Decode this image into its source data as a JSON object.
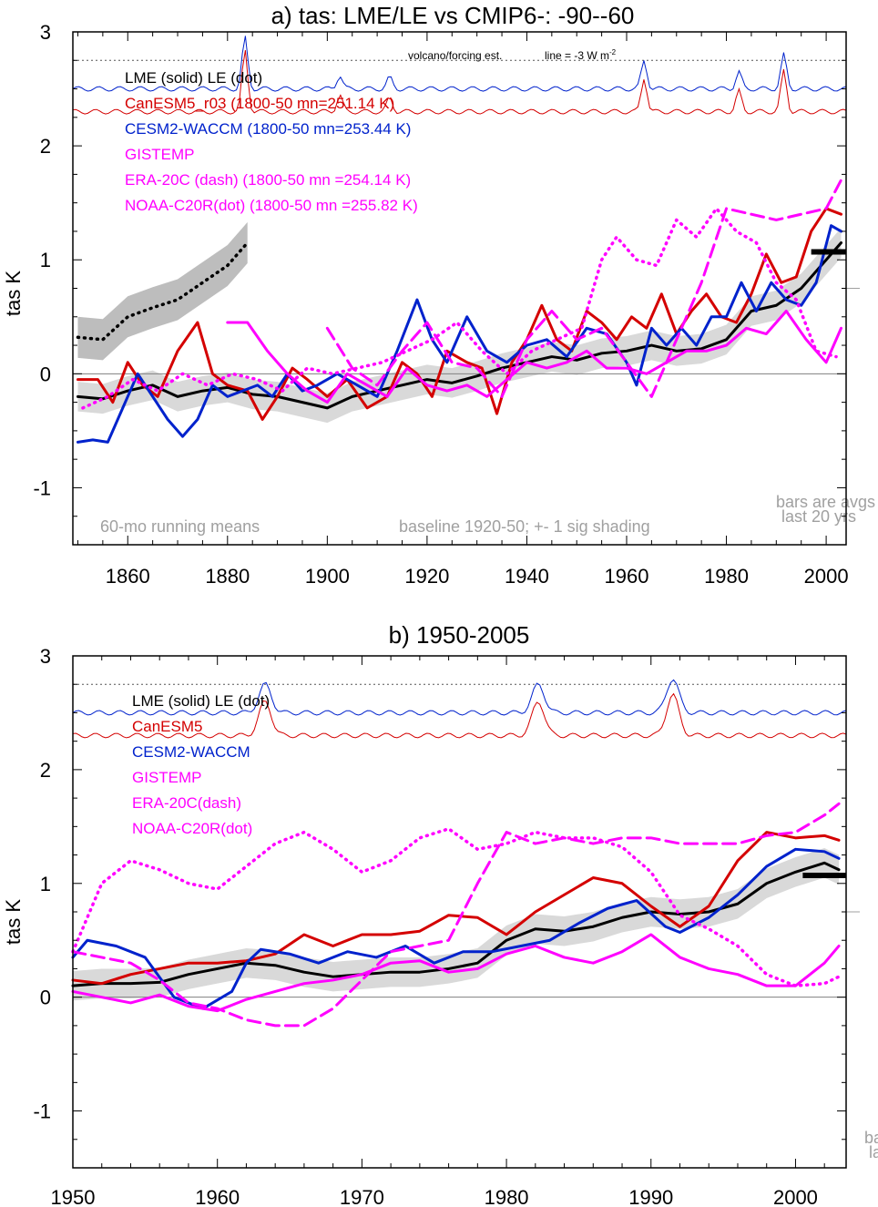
{
  "colors": {
    "lme": "#000000",
    "canesm": "#d40000",
    "cesm": "#0022cc",
    "obs": "#ff00ff",
    "shade": "#d9d9d9",
    "shade_dark": "#bdbdbd",
    "gray_text": "#a0a0a0",
    "ref_line": "#808080"
  },
  "chart_data": [
    {
      "type": "line",
      "title": "a) tas: LME/LE vs CMIP6-: -90--60",
      "ylabel": "tas K",
      "xlim": [
        1849,
        2004
      ],
      "ylim": [
        -1.5,
        3.0
      ],
      "xticks": [
        1860,
        1880,
        1900,
        1920,
        1940,
        1960,
        1980,
        2000
      ],
      "yticks": [
        -1,
        0,
        1,
        2,
        3
      ],
      "legend": [
        {
          "text": "LME (solid)    LE (dot)",
          "color": "#000000"
        },
        {
          "text": "CanESM5_r03 (1800-50 mn=251.14 K)",
          "color": "#d40000"
        },
        {
          "text": "CESM2-WACCM (1800-50 mn=253.44 K)",
          "color": "#0022cc"
        },
        {
          "text": "GISTEMP",
          "color": "#ff00ff"
        },
        {
          "text": "ERA-20C (dash) (1800-50 mn =254.14 K)",
          "color": "#ff00ff"
        },
        {
          "text": "NOAA-C20R(dot) (1800-50 mn =255.82 K)",
          "color": "#ff00ff"
        }
      ],
      "volcano_label": "volcano/forcing est.",
      "line_label": "line = -3 W m",
      "line_label_sup": "-2",
      "note_left": "60-mo running means",
      "note_center": "baseline 1920-50; +- 1 sig shading",
      "note_right_1": "bars are avgs",
      "note_right_2": "last 20 yrs",
      "ref_level": 2.75,
      "side_tick": 0.75,
      "series": [
        {
          "name": "LME",
          "style": "solid",
          "color": "#000000",
          "x": [
            1850,
            1855,
            1860,
            1865,
            1870,
            1875,
            1880,
            1885,
            1890,
            1895,
            1900,
            1905,
            1910,
            1915,
            1920,
            1925,
            1930,
            1935,
            1940,
            1945,
            1950,
            1955,
            1960,
            1965,
            1970,
            1975,
            1980,
            1985,
            1990,
            1995,
            2000,
            2003
          ],
          "y": [
            -0.2,
            -0.22,
            -0.15,
            -0.1,
            -0.2,
            -0.15,
            -0.12,
            -0.18,
            -0.2,
            -0.25,
            -0.3,
            -0.2,
            -0.15,
            -0.1,
            -0.05,
            -0.08,
            -0.02,
            0.05,
            0.1,
            0.15,
            0.12,
            0.18,
            0.2,
            0.25,
            0.2,
            0.22,
            0.3,
            0.55,
            0.6,
            0.75,
            1.0,
            1.15
          ]
        },
        {
          "name": "LE",
          "style": "dot",
          "color": "#000000",
          "x": [
            1850,
            1855,
            1860,
            1865,
            1870,
            1875,
            1880,
            1884
          ],
          "y": [
            0.32,
            0.3,
            0.5,
            0.58,
            0.65,
            0.8,
            0.95,
            1.15
          ]
        },
        {
          "name": "CanESM5_r03",
          "style": "solid",
          "color": "#d40000",
          "x": [
            1850,
            1854,
            1857,
            1860,
            1863,
            1866,
            1870,
            1874,
            1877,
            1880,
            1884,
            1887,
            1890,
            1893,
            1896,
            1900,
            1904,
            1908,
            1912,
            1915,
            1918,
            1921,
            1924,
            1928,
            1931,
            1934,
            1937,
            1940,
            1943,
            1946,
            1949,
            1952,
            1955,
            1958,
            1961,
            1964,
            1967,
            1970,
            1973,
            1976,
            1979,
            1982,
            1985,
            1988,
            1991,
            1994,
            1997,
            2000,
            2003
          ],
          "y": [
            -0.05,
            -0.05,
            -0.25,
            0.1,
            -0.1,
            -0.2,
            0.2,
            0.45,
            0.0,
            -0.1,
            -0.15,
            -0.4,
            -0.2,
            0.05,
            -0.05,
            -0.2,
            -0.05,
            -0.3,
            -0.2,
            0.1,
            0.0,
            -0.2,
            0.2,
            0.1,
            0.05,
            -0.35,
            0.1,
            0.3,
            0.6,
            0.3,
            0.2,
            0.55,
            0.45,
            0.3,
            0.5,
            0.4,
            0.7,
            0.35,
            0.55,
            0.7,
            0.5,
            0.45,
            0.7,
            1.05,
            0.8,
            0.85,
            1.25,
            1.45,
            1.4
          ]
        },
        {
          "name": "CESM2-WACCM",
          "style": "solid",
          "color": "#0022cc",
          "x": [
            1850,
            1853,
            1856,
            1859,
            1862,
            1865,
            1868,
            1871,
            1874,
            1877,
            1880,
            1883,
            1886,
            1889,
            1892,
            1895,
            1898,
            1902,
            1906,
            1910,
            1914,
            1918,
            1921,
            1924,
            1928,
            1932,
            1936,
            1940,
            1944,
            1948,
            1952,
            1956,
            1960,
            1962,
            1965,
            1968,
            1971,
            1974,
            1977,
            1980,
            1983,
            1986,
            1989,
            1992,
            1995,
            1998,
            2001,
            2003
          ],
          "y": [
            -0.6,
            -0.58,
            -0.6,
            -0.3,
            0.0,
            -0.2,
            -0.4,
            -0.55,
            -0.4,
            -0.1,
            -0.2,
            -0.15,
            -0.1,
            -0.2,
            0.0,
            -0.15,
            -0.1,
            0.0,
            -0.1,
            -0.2,
            0.2,
            0.65,
            0.3,
            0.1,
            0.5,
            0.2,
            0.1,
            0.25,
            0.3,
            0.15,
            0.4,
            0.35,
            0.1,
            -0.1,
            0.4,
            0.25,
            0.4,
            0.25,
            0.5,
            0.5,
            0.8,
            0.55,
            0.8,
            0.65,
            0.6,
            0.8,
            1.3,
            1.25
          ]
        },
        {
          "name": "GISTEMP",
          "style": "solid",
          "color": "#ff00ff",
          "x": [
            1880,
            1884,
            1888,
            1892,
            1896,
            1900,
            1904,
            1908,
            1912,
            1916,
            1920,
            1924,
            1928,
            1932,
            1936,
            1940,
            1944,
            1948,
            1952,
            1956,
            1960,
            1964,
            1968,
            1972,
            1976,
            1980,
            1984,
            1988,
            1992,
            1996,
            2000,
            2003
          ],
          "y": [
            0.45,
            0.45,
            0.2,
            0.0,
            -0.15,
            -0.25,
            0.0,
            -0.1,
            -0.2,
            0.05,
            -0.1,
            -0.15,
            -0.1,
            -0.2,
            -0.05,
            0.1,
            0.05,
            0.1,
            0.2,
            0.05,
            0.05,
            0.0,
            0.1,
            0.2,
            0.2,
            0.25,
            0.4,
            0.35,
            0.55,
            0.3,
            0.1,
            0.4
          ]
        },
        {
          "name": "ERA-20C",
          "style": "dash",
          "color": "#ff00ff",
          "x": [
            1900,
            1905,
            1910,
            1915,
            1920,
            1925,
            1930,
            1935,
            1940,
            1945,
            1950,
            1955,
            1960,
            1965,
            1970,
            1975,
            1980,
            1985,
            1990,
            1995,
            2000,
            2003
          ],
          "y": [
            0.4,
            0.05,
            -0.1,
            0.2,
            0.45,
            0.1,
            0.05,
            -0.2,
            0.3,
            0.55,
            0.3,
            0.4,
            0.1,
            -0.2,
            0.3,
            0.8,
            1.45,
            1.4,
            1.35,
            1.4,
            1.45,
            1.7
          ]
        },
        {
          "name": "NOAA-C20R",
          "style": "dot",
          "color": "#ff00ff",
          "x": [
            1851,
            1856,
            1861,
            1866,
            1871,
            1876,
            1881,
            1886,
            1891,
            1896,
            1901,
            1906,
            1911,
            1916,
            1921,
            1926,
            1931,
            1936,
            1941,
            1946,
            1951,
            1955,
            1958,
            1962,
            1966,
            1970,
            1974,
            1978,
            1982,
            1986,
            1990,
            1994,
            1998,
            2002
          ],
          "y": [
            -0.3,
            -0.2,
            -0.05,
            -0.15,
            0.0,
            -0.1,
            0.0,
            -0.05,
            -0.15,
            0.05,
            0.0,
            0.05,
            0.1,
            0.2,
            0.3,
            0.45,
            0.2,
            0.0,
            0.2,
            0.3,
            0.4,
            1.0,
            1.2,
            1.0,
            0.95,
            1.35,
            1.2,
            1.45,
            1.25,
            1.15,
            0.8,
            0.65,
            0.2,
            0.15
          ]
        }
      ],
      "bars": [
        {
          "color": "#000000",
          "value": 1.07,
          "x": [
            1997,
            2004
          ]
        }
      ]
    },
    {
      "type": "line",
      "title": "b) 1950-2005",
      "ylabel": "tas K",
      "xlim": [
        1950,
        2003.5
      ],
      "ylim": [
        -1.5,
        3.0
      ],
      "xticks": [
        1950,
        1960,
        1970,
        1980,
        1990,
        2000
      ],
      "yticks": [
        -1,
        0,
        1,
        2,
        3
      ],
      "legend": [
        {
          "text": "LME (solid)      LE (dot)",
          "color": "#000000"
        },
        {
          "text": "CanESM5",
          "color": "#d40000"
        },
        {
          "text": "CESM2-WACCM",
          "color": "#0022cc"
        },
        {
          "text": "GISTEMP",
          "color": "#ff00ff"
        },
        {
          "text": "ERA-20C(dash)",
          "color": "#ff00ff"
        },
        {
          "text": "NOAA-C20R(dot)",
          "color": "#ff00ff"
        }
      ],
      "note_right_1": "ba",
      "note_right_2": "la",
      "ref_level": 2.75,
      "side_tick": 0.75,
      "series": [
        {
          "name": "LME",
          "style": "solid",
          "color": "#000000",
          "x": [
            1950,
            1952,
            1954,
            1956,
            1958,
            1960,
            1962,
            1964,
            1966,
            1968,
            1970,
            1972,
            1974,
            1976,
            1978,
            1980,
            1982,
            1984,
            1986,
            1988,
            1990,
            1992,
            1994,
            1996,
            1998,
            2000,
            2002,
            2003
          ],
          "y": [
            0.1,
            0.12,
            0.12,
            0.13,
            0.2,
            0.25,
            0.3,
            0.28,
            0.22,
            0.18,
            0.2,
            0.22,
            0.22,
            0.25,
            0.3,
            0.5,
            0.6,
            0.58,
            0.62,
            0.7,
            0.75,
            0.73,
            0.75,
            0.82,
            1.0,
            1.1,
            1.18,
            1.12
          ]
        },
        {
          "name": "CanESM5",
          "style": "solid",
          "color": "#d40000",
          "x": [
            1950,
            1952,
            1954,
            1956,
            1958,
            1960,
            1962,
            1964,
            1966,
            1968,
            1970,
            1972,
            1974,
            1976,
            1978,
            1980,
            1982,
            1984,
            1986,
            1988,
            1990,
            1992,
            1994,
            1996,
            1998,
            2000,
            2002,
            2003
          ],
          "y": [
            0.15,
            0.12,
            0.2,
            0.25,
            0.3,
            0.3,
            0.32,
            0.38,
            0.55,
            0.45,
            0.55,
            0.55,
            0.58,
            0.72,
            0.7,
            0.55,
            0.75,
            0.9,
            1.05,
            1.0,
            0.8,
            0.62,
            0.8,
            1.2,
            1.45,
            1.4,
            1.42,
            1.38
          ]
        },
        {
          "name": "CESM2-WACCM",
          "style": "solid",
          "color": "#0022cc",
          "x": [
            1950,
            1951,
            1953,
            1955,
            1957,
            1959,
            1961,
            1962,
            1963,
            1965,
            1967,
            1969,
            1971,
            1973,
            1975,
            1977,
            1979,
            1981,
            1983,
            1985,
            1987,
            1989,
            1991,
            1992,
            1994,
            1996,
            1998,
            2000,
            2002,
            2003
          ],
          "y": [
            0.35,
            0.5,
            0.45,
            0.35,
            0.0,
            -0.1,
            0.05,
            0.3,
            0.42,
            0.38,
            0.3,
            0.4,
            0.35,
            0.45,
            0.3,
            0.4,
            0.4,
            0.45,
            0.5,
            0.65,
            0.78,
            0.85,
            0.62,
            0.57,
            0.7,
            0.9,
            1.15,
            1.3,
            1.28,
            1.22
          ]
        },
        {
          "name": "GISTEMP",
          "style": "solid",
          "color": "#ff00ff",
          "x": [
            1950,
            1952,
            1954,
            1956,
            1958,
            1960,
            1962,
            1964,
            1966,
            1968,
            1970,
            1972,
            1974,
            1976,
            1978,
            1980,
            1982,
            1984,
            1986,
            1988,
            1990,
            1992,
            1994,
            1996,
            1998,
            2000,
            2002,
            2003
          ],
          "y": [
            0.05,
            0.0,
            -0.05,
            0.02,
            -0.08,
            -0.12,
            -0.02,
            0.05,
            0.12,
            0.15,
            0.2,
            0.3,
            0.32,
            0.22,
            0.25,
            0.38,
            0.45,
            0.35,
            0.3,
            0.4,
            0.55,
            0.35,
            0.25,
            0.2,
            0.1,
            0.1,
            0.3,
            0.45
          ]
        },
        {
          "name": "ERA-20C",
          "style": "dash",
          "color": "#ff00ff",
          "x": [
            1950,
            1952,
            1954,
            1956,
            1958,
            1960,
            1962,
            1964,
            1966,
            1968,
            1970,
            1972,
            1974,
            1976,
            1978,
            1980,
            1982,
            1984,
            1986,
            1988,
            1990,
            1992,
            1994,
            1996,
            1998,
            2000,
            2002,
            2003
          ],
          "y": [
            0.4,
            0.35,
            0.3,
            0.15,
            -0.05,
            -0.1,
            -0.2,
            -0.25,
            -0.25,
            -0.1,
            0.15,
            0.4,
            0.45,
            0.5,
            1.0,
            1.45,
            1.35,
            1.4,
            1.35,
            1.4,
            1.4,
            1.35,
            1.35,
            1.35,
            1.42,
            1.45,
            1.6,
            1.7
          ]
        },
        {
          "name": "NOAA-C20R",
          "style": "dot",
          "color": "#ff00ff",
          "x": [
            1950,
            1952,
            1954,
            1956,
            1958,
            1960,
            1962,
            1964,
            1966,
            1968,
            1970,
            1972,
            1974,
            1976,
            1978,
            1980,
            1982,
            1984,
            1986,
            1988,
            1990,
            1992,
            1994,
            1996,
            1998,
            2000,
            2002,
            2003
          ],
          "y": [
            0.4,
            1.0,
            1.2,
            1.12,
            1.0,
            0.95,
            1.15,
            1.35,
            1.45,
            1.3,
            1.1,
            1.2,
            1.4,
            1.48,
            1.3,
            1.35,
            1.45,
            1.4,
            1.4,
            1.32,
            1.1,
            0.72,
            0.6,
            0.45,
            0.2,
            0.1,
            0.12,
            0.18
          ]
        }
      ],
      "bars": [
        {
          "color": "#000000",
          "value": 1.07,
          "x": [
            2000.5,
            2003.5
          ]
        }
      ]
    }
  ]
}
